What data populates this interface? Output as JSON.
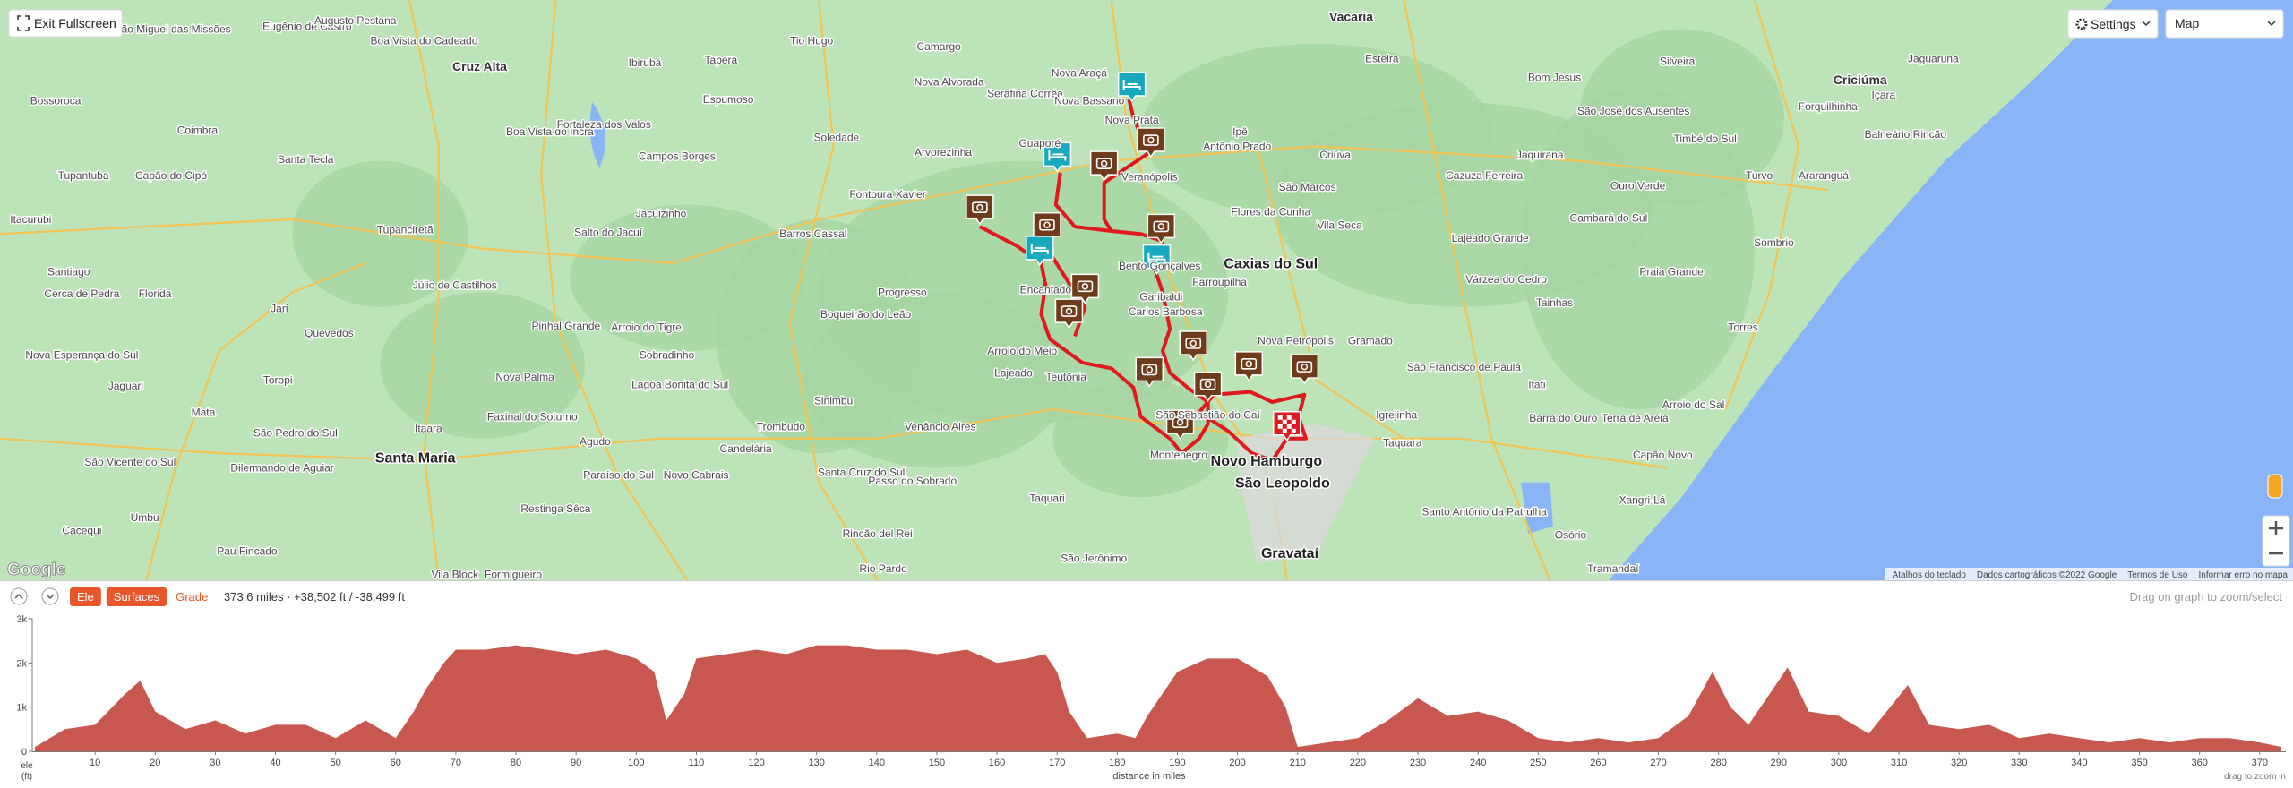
{
  "map": {
    "controls": {
      "exit_fullscreen": "Exit Fullscreen",
      "settings": "Settings",
      "map_type": "Map"
    },
    "logo": "Google",
    "attribution": [
      "Atalhos do teclado",
      "Dados cartográficos ©2022 Google",
      "Termos de Uso",
      "Informar erro no mapa"
    ],
    "labels": [
      "Eugênio de Castro",
      "Augusto Pestana",
      "São Miguel das Missões",
      "Boa Vista do Cadeado",
      "Cruz Alta",
      "Ibirubá",
      "Tapera",
      "Tio Hugo",
      "Camargo",
      "Nova Araçá",
      "Vacaria",
      "Esteira",
      "Bom Jesus",
      "Silveira",
      "Criciúma",
      "Jaguaruna",
      "São José dos Ausentes",
      "Bossoroca",
      "Coimbra",
      "Santa Tecla",
      "Boa Vista do Incra",
      "Fortaleza dos Valos",
      "Espumoso",
      "Soledade",
      "Guaporé",
      "Caxias do Sul",
      "Farroupilha",
      "Carlos Barbosa",
      "Encantado",
      "Lajeado",
      "Teutônia",
      "Novo Hamburgo",
      "São Leopoldo",
      "Gravataí",
      "Taquara",
      "Santa Maria",
      "Venâncio Aires",
      "Santa Cruz do Sul",
      "Candelária",
      "Sobradinho",
      "Salto do Jacuí",
      "Jacuizinho",
      "Júlio de Castilhos",
      "Tupanciretã",
      "Santiago",
      "Itacurubi",
      "Capão do Cipó",
      "Tupantuba",
      "Florida",
      "Jari",
      "Quevedos",
      "Toropi",
      "Jaguari",
      "Mata",
      "Pinhal Grande",
      "Arroio do Tigre",
      "Nova Palma",
      "Faxinal do Soturno",
      "Agudo",
      "Restinga Sêca",
      "Paraíso do Sul",
      "Novo Cabrais",
      "Umbu",
      "Cacequi",
      "Pau Fincado",
      "São Pedro do Sul",
      "Dilermando de Aguiar",
      "Itaara",
      "Osório",
      "Tramandaí",
      "Torres",
      "Arroio do Sal",
      "Capão Novo",
      "Xangri-Lá",
      "Santo Antônio da Patrulha",
      "Terra de Areia",
      "Lajeado Grande",
      "Cazuza Ferreira",
      "São Marcos",
      "Flores da Cunha",
      "Nova Petrópolis",
      "Gramado",
      "Igrejinha",
      "São Francisco de Paula",
      "Tainhas",
      "Várzea do Cedro",
      "Praia Grande",
      "Sombrio",
      "Turvo",
      "Araranguá",
      "Forquilhinha",
      "Içara",
      "Balneário Rincão",
      "Timbé do Sul",
      "Cambará do Sul",
      "Ouro Verde",
      "Vila Seca",
      "Criúva",
      "Ipê",
      "Antônio Prado",
      "Jaquirana",
      "Campos Borges",
      "Barros Cassal",
      "Fontoura Xavier",
      "Arvorezinha",
      "Nova Alvorada",
      "Serafina Corrêa",
      "Progresso",
      "Boqueirão do Leão",
      "Lagoa Bonita do Sul",
      "Sinimbu",
      "Trombudo",
      "Passo do Sobrado",
      "Rio Pardo",
      "Rincão del Rei",
      "Taquari",
      "São Jerônimo",
      "Vila Block",
      "Formigueiro",
      "São Vicente do Sul",
      "Nova Esperança do Sul",
      "Cerca de Pedra",
      "Arroio do Meio",
      "Barra do Ouro",
      "Itati",
      "São Sebastião do Caí",
      "Montenegro",
      "Garibaldi",
      "Bento Gonçalves",
      "Veranópolis",
      "Nova Prata",
      "Nova Bassano"
    ]
  },
  "toolbar": {
    "buttons": [
      "Ele",
      "Surfaces"
    ],
    "grade": "Grade",
    "stats": "373.6 miles · +38,502 ft / -38,499 ft",
    "hint": "Drag on graph to zoom/select"
  },
  "chart_data": {
    "type": "area",
    "color": "#c8584f",
    "x": [
      0,
      5,
      10,
      15,
      17.5,
      20,
      25,
      30,
      35,
      40,
      45,
      50,
      55,
      60,
      63,
      65,
      68,
      70,
      75,
      80,
      85,
      90,
      95,
      100,
      103,
      105,
      108,
      110,
      115,
      120,
      125,
      130,
      135,
      140,
      145,
      150,
      155,
      160,
      165,
      168,
      170,
      172,
      175,
      180,
      183,
      185,
      190,
      195,
      200,
      205,
      208,
      210,
      215,
      220,
      225,
      230,
      235,
      240,
      245,
      250,
      255,
      260,
      265,
      270,
      275,
      279,
      282,
      285,
      291.5,
      295,
      300,
      305,
      311.5,
      315,
      320,
      325,
      330,
      335,
      340,
      345,
      350,
      355,
      360,
      365,
      370,
      373.6
    ],
    "values": [
      100,
      500,
      600,
      1300,
      1600,
      900,
      500,
      700,
      400,
      600,
      600,
      300,
      700,
      300,
      900,
      1400,
      2000,
      2300,
      2300,
      2400,
      2300,
      2200,
      2300,
      2100,
      1800,
      700,
      1300,
      2100,
      2200,
      2300,
      2200,
      2400,
      2400,
      2300,
      2300,
      2200,
      2300,
      2000,
      2100,
      2200,
      1800,
      900,
      300,
      400,
      300,
      800,
      1800,
      2100,
      2100,
      1700,
      1000,
      100,
      200,
      300,
      700,
      1200,
      800,
      900,
      700,
      300,
      200,
      300,
      200,
      300,
      800,
      1800,
      1000,
      600,
      1900,
      900,
      800,
      400,
      1500,
      600,
      500,
      600,
      300,
      400,
      300,
      200,
      300,
      200,
      300,
      300,
      200,
      100
    ],
    "xlim": [
      0,
      373.6
    ],
    "ylim": [
      0,
      3000
    ],
    "xticks": [
      10,
      20,
      30,
      40,
      50,
      60,
      70,
      80,
      90,
      100,
      110,
      120,
      130,
      140,
      150,
      160,
      170,
      180,
      190,
      200,
      210,
      220,
      230,
      240,
      250,
      260,
      270,
      280,
      290,
      300,
      310,
      320,
      330,
      340,
      350,
      360,
      370
    ],
    "yticks": [
      0,
      {
        "value": 1000,
        "label": "1k"
      },
      {
        "value": 2000,
        "label": "2k"
      },
      {
        "value": 3000,
        "label": "3k"
      }
    ],
    "y_label": [
      "ele",
      "(ft)"
    ],
    "x_label": "distance in miles",
    "hint": "drag to zoom in"
  }
}
